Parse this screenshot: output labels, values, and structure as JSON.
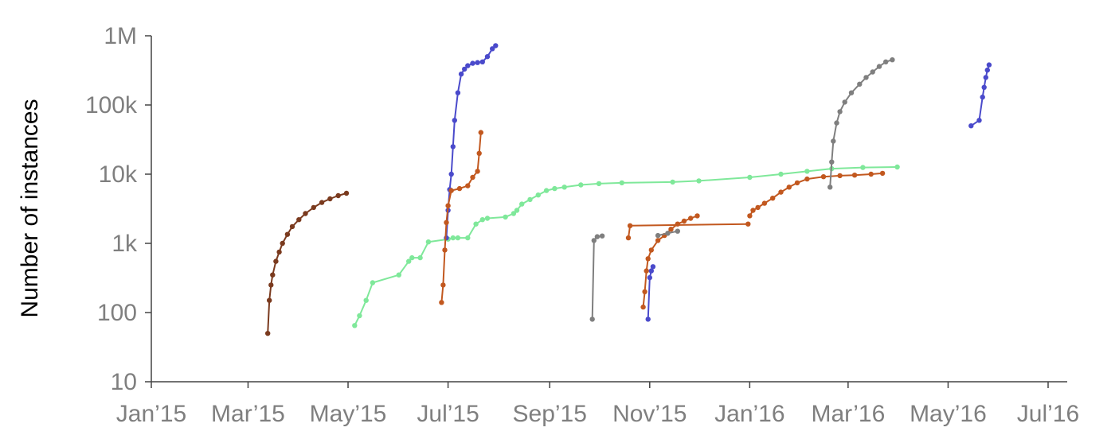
{
  "chart_data": {
    "type": "line",
    "title": "",
    "xlabel": "",
    "ylabel": "Number of instances",
    "yscale": "log",
    "ylim": [
      10,
      1000000
    ],
    "xlim": [
      "2015-01-01",
      "2016-07-01"
    ],
    "grid": false,
    "legend": "none",
    "yticks": [
      {
        "value": 10,
        "label": "10"
      },
      {
        "value": 100,
        "label": "100"
      },
      {
        "value": 1000,
        "label": "1k"
      },
      {
        "value": 10000,
        "label": "10k"
      },
      {
        "value": 100000,
        "label": "100k"
      },
      {
        "value": 1000000,
        "label": "1M"
      }
    ],
    "xticks": [
      {
        "value": "2015-01-01",
        "label": "Jan’15"
      },
      {
        "value": "2015-03-01",
        "label": "Mar’15"
      },
      {
        "value": "2015-05-01",
        "label": "May’15"
      },
      {
        "value": "2015-07-01",
        "label": "Jul’15"
      },
      {
        "value": "2015-09-01",
        "label": "Sep’15"
      },
      {
        "value": "2015-11-01",
        "label": "Nov’15"
      },
      {
        "value": "2016-01-01",
        "label": "Jan’16"
      },
      {
        "value": "2016-03-01",
        "label": "Mar’16"
      },
      {
        "value": "2016-05-01",
        "label": "May’16"
      },
      {
        "value": "2016-07-01",
        "label": "Jul’16"
      }
    ],
    "series": [
      {
        "color": "#7a3a1e",
        "x": [
          "2015-03-13",
          "2015-03-14",
          "2015-03-15",
          "2015-03-16",
          "2015-03-18",
          "2015-03-20",
          "2015-03-22",
          "2015-03-25",
          "2015-03-28",
          "2015-04-01",
          "2015-04-05",
          "2015-04-10",
          "2015-04-15",
          "2015-04-20",
          "2015-04-25",
          "2015-04-30"
        ],
        "y": [
          50,
          150,
          250,
          350,
          550,
          750,
          1000,
          1350,
          1750,
          2200,
          2700,
          3300,
          3900,
          4400,
          4900,
          5300
        ]
      },
      {
        "color": "#7fe89a",
        "x": [
          "2015-05-05",
          "2015-05-08",
          "2015-05-12",
          "2015-05-16",
          "2015-06-01",
          "2015-06-07",
          "2015-06-09",
          "2015-06-14",
          "2015-06-19",
          "2015-07-01",
          "2015-07-04",
          "2015-07-07",
          "2015-07-13",
          "2015-07-18",
          "2015-07-22",
          "2015-07-25",
          "2015-08-05",
          "2015-08-10",
          "2015-08-12",
          "2015-08-15",
          "2015-08-20",
          "2015-08-25",
          "2015-08-30",
          "2015-09-04",
          "2015-09-10",
          "2015-09-20",
          "2015-10-01",
          "2015-10-15",
          "2015-11-15",
          "2015-12-01",
          "2016-01-01",
          "2016-01-20",
          "2016-02-05",
          "2016-02-20",
          "2016-03-10",
          "2016-03-31"
        ],
        "y": [
          65,
          90,
          150,
          270,
          350,
          550,
          620,
          620,
          1050,
          1150,
          1200,
          1200,
          1200,
          1900,
          2200,
          2300,
          2400,
          2700,
          3000,
          3700,
          4300,
          5000,
          5800,
          6200,
          6500,
          7000,
          7300,
          7500,
          7700,
          8000,
          9000,
          10000,
          11000,
          12000,
          12500,
          12700
        ]
      },
      {
        "color": "#4a4acb",
        "x": [
          "2015-06-30",
          "2015-07-01",
          "2015-07-02",
          "2015-07-03",
          "2015-07-04",
          "2015-07-05",
          "2015-07-07",
          "2015-07-09",
          "2015-07-11",
          "2015-07-13",
          "2015-07-16",
          "2015-07-19",
          "2015-07-22",
          "2015-07-25",
          "2015-07-28",
          "2015-07-30"
        ],
        "y": [
          1200,
          3000,
          6000,
          10000,
          25000,
          60000,
          150000,
          280000,
          330000,
          370000,
          400000,
          410000,
          420000,
          500000,
          650000,
          720000
        ]
      },
      {
        "color": "#c2581f",
        "x": [
          "2015-06-27",
          "2015-06-28",
          "2015-06-29",
          "2015-06-30",
          "2015-07-01",
          "2015-07-03",
          "2015-07-08",
          "2015-07-13",
          "2015-07-16",
          "2015-07-19",
          "2015-07-20",
          "2015-07-21"
        ],
        "y": [
          140,
          250,
          800,
          2000,
          3500,
          5800,
          6200,
          6800,
          9000,
          11000,
          20000,
          40000
        ]
      },
      {
        "color": "#7f7f7f",
        "x": [
          "2015-09-27",
          "2015-09-28",
          "2015-09-30",
          "2015-10-03"
        ],
        "y": [
          80,
          1100,
          1250,
          1280
        ]
      },
      {
        "color": "#c2581f",
        "x": [
          "2015-10-19",
          "2015-10-20",
          "2015-12-31"
        ],
        "y": [
          1200,
          1800,
          1900
        ]
      },
      {
        "color": "#c2581f",
        "x": [
          "2015-10-28",
          "2015-10-29",
          "2015-10-30",
          "2015-10-31",
          "2015-11-02",
          "2015-11-06",
          "2015-11-10",
          "2015-11-14",
          "2015-11-18",
          "2015-11-22",
          "2015-11-26",
          "2015-11-30"
        ],
        "y": [
          120,
          200,
          400,
          600,
          800,
          1100,
          1300,
          1600,
          1900,
          2100,
          2300,
          2500
        ]
      },
      {
        "color": "#7f7f7f",
        "x": [
          "2015-11-06",
          "2015-11-12",
          "2015-11-18"
        ],
        "y": [
          1300,
          1400,
          1500
        ]
      },
      {
        "color": "#4a4acb",
        "x": [
          "2015-10-31",
          "2015-11-01",
          "2015-11-02",
          "2015-11-03"
        ],
        "y": [
          80,
          320,
          400,
          460
        ]
      },
      {
        "color": "#c2581f",
        "x": [
          "2016-01-01",
          "2016-01-03",
          "2016-01-06",
          "2016-01-10",
          "2016-01-15",
          "2016-01-20",
          "2016-01-25",
          "2016-01-30",
          "2016-02-05",
          "2016-02-15",
          "2016-02-25",
          "2016-03-05",
          "2016-03-15",
          "2016-03-22"
        ],
        "y": [
          2500,
          3000,
          3300,
          3800,
          4500,
          5500,
          6500,
          7500,
          8500,
          9200,
          9500,
          9700,
          10000,
          10300
        ]
      },
      {
        "color": "#7f7f7f",
        "x": [
          "2016-02-19",
          "2016-02-20",
          "2016-02-21",
          "2016-02-23",
          "2016-02-25",
          "2016-02-28",
          "2016-03-03",
          "2016-03-08",
          "2016-03-12",
          "2016-03-16",
          "2016-03-20",
          "2016-03-24",
          "2016-03-28"
        ],
        "y": [
          6500,
          15000,
          30000,
          55000,
          80000,
          110000,
          150000,
          200000,
          250000,
          300000,
          360000,
          420000,
          450000
        ]
      },
      {
        "color": "#4a4acb",
        "x": [
          "2016-05-15",
          "2016-05-20",
          "2016-05-22",
          "2016-05-23",
          "2016-05-24",
          "2016-05-25",
          "2016-05-26"
        ],
        "y": [
          50000,
          60000,
          130000,
          180000,
          250000,
          320000,
          380000
        ]
      }
    ]
  }
}
